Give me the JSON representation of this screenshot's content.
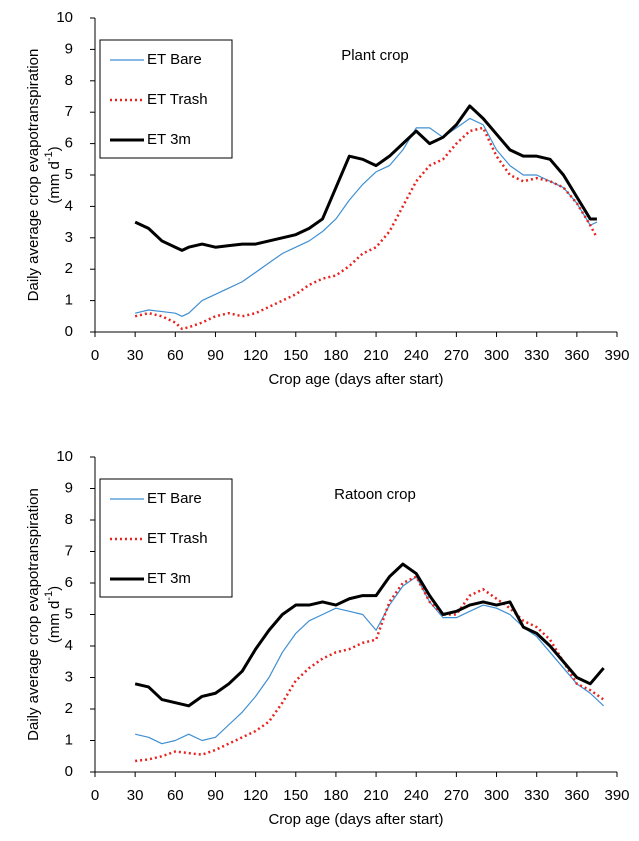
{
  "chart_data": [
    {
      "type": "line",
      "title": "Plant crop",
      "xlabel": "Crop age (days after start)",
      "ylabel": [
        "Daily average crop evapotranspiration",
        "(mm d",
        "-1",
        ")"
      ],
      "x": [
        30,
        40,
        50,
        60,
        65,
        70,
        80,
        90,
        100,
        110,
        120,
        130,
        140,
        150,
        160,
        170,
        180,
        190,
        200,
        210,
        220,
        230,
        240,
        250,
        260,
        270,
        280,
        290,
        300,
        310,
        320,
        330,
        340,
        350,
        360,
        370,
        375
      ],
      "series": [
        {
          "name": "ET Bare",
          "color": "#3f8fd2",
          "linestyle": "solid",
          "linewidth": 1.2,
          "values": [
            0.6,
            0.7,
            0.65,
            0.6,
            0.5,
            0.6,
            1.0,
            1.2,
            1.4,
            1.6,
            1.9,
            2.2,
            2.5,
            2.7,
            2.9,
            3.2,
            3.6,
            4.2,
            4.7,
            5.1,
            5.3,
            5.8,
            6.5,
            6.5,
            6.2,
            6.5,
            6.8,
            6.6,
            5.8,
            5.3,
            5.0,
            5.0,
            4.8,
            4.6,
            4.1,
            3.4,
            3.5
          ]
        },
        {
          "name": "ET Trash",
          "color": "#e8231f",
          "linestyle": "dotted",
          "linewidth": 2.5,
          "values": [
            0.5,
            0.6,
            0.5,
            0.3,
            0.1,
            0.15,
            0.3,
            0.5,
            0.6,
            0.5,
            0.6,
            0.8,
            1.0,
            1.2,
            1.5,
            1.7,
            1.8,
            2.1,
            2.5,
            2.7,
            3.2,
            4.0,
            4.8,
            5.3,
            5.5,
            6.0,
            6.4,
            6.5,
            5.6,
            5.0,
            4.8,
            4.9,
            4.8,
            4.6,
            4.1,
            3.4,
            3.0
          ]
        },
        {
          "name": "ET 3m",
          "color": "#000000",
          "linestyle": "solid",
          "linewidth": 3,
          "values": [
            3.5,
            3.3,
            2.9,
            2.7,
            2.6,
            2.7,
            2.8,
            2.7,
            2.75,
            2.8,
            2.8,
            2.9,
            3.0,
            3.1,
            3.3,
            3.6,
            4.6,
            5.6,
            5.5,
            5.3,
            5.6,
            6.0,
            6.4,
            6.0,
            6.2,
            6.6,
            7.2,
            6.8,
            6.3,
            5.8,
            5.6,
            5.6,
            5.5,
            5.0,
            4.3,
            3.6,
            3.6
          ]
        }
      ],
      "xlim": [
        0,
        390
      ],
      "ylim": [
        0,
        10
      ],
      "xticks": [
        0,
        30,
        60,
        90,
        120,
        150,
        180,
        210,
        240,
        270,
        300,
        330,
        360,
        390
      ],
      "yticks": [
        0,
        1,
        2,
        3,
        4,
        5,
        6,
        7,
        8,
        9,
        10
      ],
      "legend": "upper left"
    },
    {
      "type": "line",
      "title": "Ratoon crop",
      "xlabel": "Crop age (days after start)",
      "ylabel": [
        "Daily average crop evapotranspiration",
        "(mm d",
        "-1",
        ")"
      ],
      "x": [
        30,
        40,
        50,
        60,
        70,
        80,
        90,
        100,
        110,
        120,
        130,
        140,
        150,
        160,
        170,
        180,
        190,
        200,
        210,
        220,
        230,
        240,
        250,
        260,
        270,
        280,
        290,
        300,
        310,
        320,
        330,
        340,
        350,
        360,
        370,
        380
      ],
      "series": [
        {
          "name": "ET Bare",
          "color": "#3f8fd2",
          "linestyle": "solid",
          "linewidth": 1.2,
          "values": [
            1.2,
            1.1,
            0.9,
            1.0,
            1.2,
            1.0,
            1.1,
            1.5,
            1.9,
            2.4,
            3.0,
            3.8,
            4.4,
            4.8,
            5.0,
            5.2,
            5.1,
            5.0,
            4.5,
            5.3,
            5.9,
            6.2,
            5.4,
            4.9,
            4.9,
            5.1,
            5.3,
            5.2,
            5.0,
            4.6,
            4.3,
            3.8,
            3.3,
            2.8,
            2.5,
            2.1
          ]
        },
        {
          "name": "ET Trash",
          "color": "#e8231f",
          "linestyle": "dotted",
          "linewidth": 2.5,
          "values": [
            0.35,
            0.4,
            0.5,
            0.65,
            0.6,
            0.55,
            0.7,
            0.9,
            1.1,
            1.3,
            1.6,
            2.2,
            2.9,
            3.3,
            3.6,
            3.8,
            3.9,
            4.1,
            4.2,
            5.4,
            6.0,
            6.2,
            5.4,
            5.0,
            5.0,
            5.6,
            5.8,
            5.5,
            5.2,
            4.8,
            4.6,
            4.2,
            3.5,
            2.8,
            2.6,
            2.3
          ]
        },
        {
          "name": "ET 3m",
          "color": "#000000",
          "linestyle": "solid",
          "linewidth": 3,
          "values": [
            2.8,
            2.7,
            2.3,
            2.2,
            2.1,
            2.4,
            2.5,
            2.8,
            3.2,
            3.9,
            4.5,
            5.0,
            5.3,
            5.3,
            5.4,
            5.3,
            5.5,
            5.6,
            5.6,
            6.2,
            6.6,
            6.3,
            5.6,
            5.0,
            5.1,
            5.3,
            5.4,
            5.3,
            5.4,
            4.6,
            4.4,
            4.0,
            3.5,
            3.0,
            2.8,
            3.3
          ]
        }
      ],
      "xlim": [
        0,
        390
      ],
      "ylim": [
        0,
        10
      ],
      "xticks": [
        0,
        30,
        60,
        90,
        120,
        150,
        180,
        210,
        240,
        270,
        300,
        330,
        360,
        390
      ],
      "yticks": [
        0,
        1,
        2,
        3,
        4,
        5,
        6,
        7,
        8,
        9,
        10
      ],
      "legend": "upper left"
    }
  ]
}
